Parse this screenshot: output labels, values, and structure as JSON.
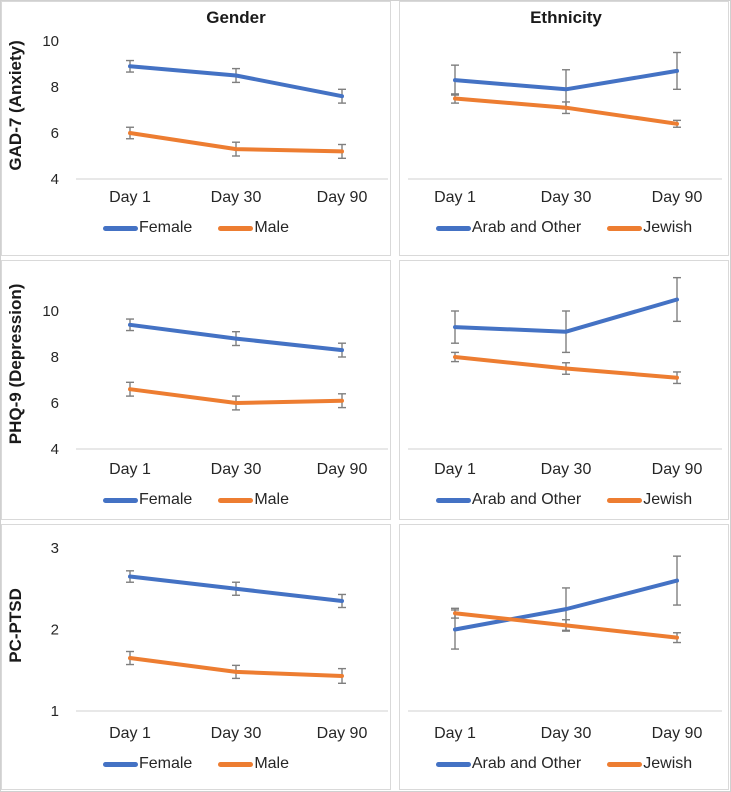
{
  "figure": {
    "column_headers": [
      "Gender",
      "Ethnicity"
    ],
    "row_measures": [
      "GAD-7 (Anxiety)",
      "PHQ-9 (Depression)",
      "PC-PTSD"
    ]
  },
  "colors": {
    "series_blue": "#4472C4",
    "series_orange": "#ED7D31",
    "error_bar": "#7F7F7F",
    "axis_line": "#D9D9D9",
    "cell_border": "#D9D9D9",
    "text": "#262626"
  },
  "chart_data": [
    {
      "id": "gad7-gender",
      "type": "line",
      "title": "Gender",
      "ylabel": "GAD-7 (Anxiety)",
      "categories": [
        "Day 1",
        "Day 30",
        "Day 90"
      ],
      "yticks": [
        4,
        6,
        8,
        10
      ],
      "ylim": [
        4,
        10.4
      ],
      "grid": false,
      "legend_position": "bottom",
      "series": [
        {
          "name": "Female",
          "color": "#4472C4",
          "values": [
            8.9,
            8.5,
            7.6
          ],
          "errors": [
            0.25,
            0.3,
            0.3
          ]
        },
        {
          "name": "Male",
          "color": "#ED7D31",
          "values": [
            6.0,
            5.3,
            5.2
          ],
          "errors": [
            0.25,
            0.3,
            0.3
          ]
        }
      ]
    },
    {
      "id": "gad7-ethnicity",
      "type": "line",
      "title": "Ethnicity",
      "ylabel": null,
      "categories": [
        "Day 1",
        "Day 30",
        "Day 90"
      ],
      "yticks": [],
      "ylim": [
        4,
        10.4
      ],
      "grid": false,
      "legend_position": "bottom",
      "series": [
        {
          "name": "Arab and Other",
          "color": "#4472C4",
          "values": [
            8.3,
            7.9,
            8.7
          ],
          "errors": [
            0.65,
            0.85,
            0.8
          ]
        },
        {
          "name": "Jewish",
          "color": "#ED7D31",
          "values": [
            7.5,
            7.1,
            6.4
          ],
          "errors": [
            0.2,
            0.25,
            0.15
          ]
        }
      ]
    },
    {
      "id": "phq9-gender",
      "type": "line",
      "title": null,
      "ylabel": "PHQ-9 (Depression)",
      "categories": [
        "Day 1",
        "Day 30",
        "Day 90"
      ],
      "yticks": [
        4,
        6,
        8,
        10
      ],
      "ylim": [
        4,
        11.4
      ],
      "grid": false,
      "legend_position": "bottom",
      "series": [
        {
          "name": "Female",
          "color": "#4472C4",
          "values": [
            9.4,
            8.8,
            8.3
          ],
          "errors": [
            0.25,
            0.3,
            0.3
          ]
        },
        {
          "name": "Male",
          "color": "#ED7D31",
          "values": [
            6.6,
            6.0,
            6.1
          ],
          "errors": [
            0.3,
            0.3,
            0.3
          ]
        }
      ]
    },
    {
      "id": "phq9-ethnicity",
      "type": "line",
      "title": null,
      "ylabel": null,
      "categories": [
        "Day 1",
        "Day 30",
        "Day 90"
      ],
      "yticks": [],
      "ylim": [
        4,
        11.4
      ],
      "grid": false,
      "legend_position": "bottom",
      "series": [
        {
          "name": "Arab and Other",
          "color": "#4472C4",
          "values": [
            9.3,
            9.1,
            10.5
          ],
          "errors": [
            0.7,
            0.9,
            0.95
          ]
        },
        {
          "name": "Jewish",
          "color": "#ED7D31",
          "values": [
            8.0,
            7.5,
            7.1
          ],
          "errors": [
            0.2,
            0.25,
            0.25
          ]
        }
      ]
    },
    {
      "id": "pcptsd-gender",
      "type": "line",
      "title": null,
      "ylabel": "PC-PTSD",
      "categories": [
        "Day 1",
        "Day 30",
        "Day 90"
      ],
      "yticks": [
        1,
        2,
        3
      ],
      "ylim": [
        1,
        3.1
      ],
      "grid": false,
      "legend_position": "bottom",
      "series": [
        {
          "name": "Female",
          "color": "#4472C4",
          "values": [
            2.65,
            2.5,
            2.35
          ],
          "errors": [
            0.07,
            0.08,
            0.08
          ]
        },
        {
          "name": "Male",
          "color": "#ED7D31",
          "values": [
            1.65,
            1.48,
            1.43
          ],
          "errors": [
            0.08,
            0.08,
            0.09
          ]
        }
      ]
    },
    {
      "id": "pcptsd-ethnicity",
      "type": "line",
      "title": null,
      "ylabel": null,
      "categories": [
        "Day 1",
        "Day 30",
        "Day 90"
      ],
      "yticks": [],
      "ylim": [
        1,
        3.1
      ],
      "grid": false,
      "legend_position": "bottom",
      "series": [
        {
          "name": "Arab and Other",
          "color": "#4472C4",
          "values": [
            2.0,
            2.25,
            2.6
          ],
          "errors": [
            0.24,
            0.26,
            0.3
          ]
        },
        {
          "name": "Jewish",
          "color": "#ED7D31",
          "values": [
            2.2,
            2.05,
            1.9
          ],
          "errors": [
            0.06,
            0.07,
            0.06
          ]
        }
      ]
    }
  ]
}
